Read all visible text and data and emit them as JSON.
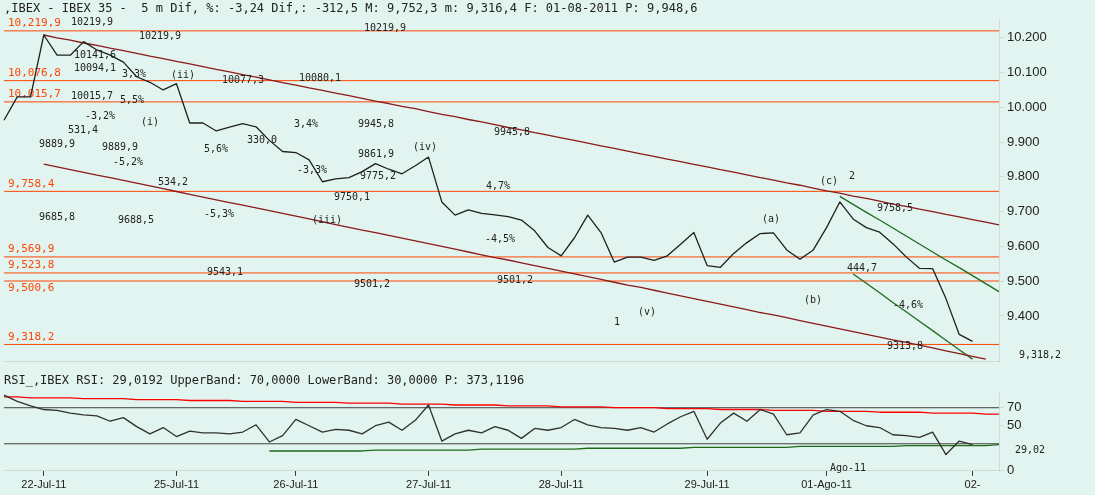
{
  "chart_data": [
    {
      "type": "line",
      "title": ",IBEX - IBEX 35 -  5 m Dif, %: -3,24 Dif,: -312,5 M: 9,752,3 m: 9,316,4 F: 01-08-2011 P: 9,948,6",
      "ylim": [
        9270,
        10250
      ],
      "categories": [
        null,
        null,
        null,
        null,
        null,
        null,
        null,
        null,
        null,
        null,
        null,
        null,
        null,
        null,
        null,
        null,
        null,
        null,
        null,
        null,
        null,
        null,
        null,
        null,
        null,
        null,
        null,
        null,
        null,
        null,
        null,
        null,
        null,
        null,
        null,
        null,
        null,
        null,
        null,
        null,
        null,
        null,
        null,
        null,
        null,
        null,
        null,
        null,
        null,
        null,
        null,
        null,
        null,
        null,
        null,
        null,
        null,
        null,
        null,
        null,
        null,
        null,
        null,
        null,
        null,
        null,
        null,
        null,
        null,
        null,
        null,
        null,
        null,
        null,
        null,
        null
      ],
      "yticks": [
        {
          "value": 9400,
          "label": "9.400"
        },
        {
          "value": 9500,
          "label": "9.500"
        },
        {
          "value": 9600,
          "label": "9.600"
        },
        {
          "value": 9700,
          "label": "9.700"
        },
        {
          "value": 9800,
          "label": "9.800"
        },
        {
          "value": 9900,
          "label": "9.900"
        },
        {
          "value": 10000,
          "label": "10.000"
        },
        {
          "value": 10100,
          "label": "10.100"
        },
        {
          "value": 10200,
          "label": "10.200"
        }
      ],
      "tick_labels": "y",
      "legend": false,
      "marker": "none",
      "series": [
        {
          "color": "#202020",
          "values": [
            9963,
            10030,
            10030,
            10208,
            10150,
            10150,
            10189,
            10165,
            10150,
            10130,
            10088,
            10072,
            10050,
            10068,
            9955,
            9955,
            9932,
            9943,
            9953,
            9944,
            9905,
            9873,
            9870,
            9849,
            9786,
            9794,
            9798,
            9815,
            9838,
            9822,
            9809,
            9832,
            9857,
            9728,
            9690,
            9705,
            9695,
            9691,
            9686,
            9676,
            9645,
            9597,
            9573,
            9625,
            9690,
            9640,
            9555,
            9569,
            9569,
            9560,
            9573,
            9606,
            9640,
            9545,
            9540,
            9580,
            9611,
            9637,
            9639,
            9590,
            9563,
            9590,
            9654,
            9728,
            9679,
            9654,
            9641,
            9608,
            9570,
            9537,
            9536,
            9450,
            9347,
            9327,
            null,
            null
          ]
        },
        {
          "color": "#8b1a1a",
          "values": [
            null,
            null,
            null,
            10208,
            10200,
            10193,
            10185,
            10178,
            10170,
            10163,
            10155,
            10147,
            10140,
            10132,
            10125,
            10117,
            10109,
            10102,
            10094,
            10087,
            10079,
            10071,
            10064,
            10056,
            10049,
            10041,
            10034,
            10026,
            10018,
            10011,
            10003,
            9996,
            9988,
            9980,
            9973,
            9965,
            9958,
            9950,
            9942,
            9935,
            9927,
            9920,
            9912,
            9905,
            9897,
            9889,
            9882,
            9874,
            9866,
            9859,
            9851,
            9844,
            9836,
            9829,
            9821,
            9814,
            9806,
            9798,
            9791,
            9783,
            9776,
            9768,
            9760,
            9753,
            9745,
            9738,
            9730,
            9722,
            9715,
            9707,
            9700,
            9692,
            9685,
            9677,
            9670,
            9662
          ]
        },
        {
          "color": "#8b1a1a",
          "values": [
            null,
            null,
            null,
            9837,
            9829,
            9821,
            9813,
            9805,
            9798,
            9790,
            9782,
            9774,
            9766,
            9758,
            9750,
            9742,
            9734,
            9726,
            9719,
            9711,
            9703,
            9695,
            9687,
            9679,
            9671,
            9663,
            9655,
            9647,
            9640,
            9632,
            9624,
            9616,
            9608,
            9600,
            9592,
            9584,
            9576,
            9568,
            9561,
            9553,
            9545,
            9537,
            9529,
            9521,
            9513,
            9505,
            9497,
            9489,
            9482,
            9474,
            9466,
            9458,
            9450,
            9442,
            9434,
            9426,
            9418,
            9410,
            9403,
            9395,
            9387,
            9379,
            9371,
            9363,
            9355,
            9347,
            9339,
            9331,
            9324,
            9316,
            9308,
            9300,
            9292,
            9284,
            9276,
            null
          ]
        },
        {
          "color": "#1e6b1e",
          "values": [
            null,
            null,
            null,
            null,
            null,
            null,
            null,
            null,
            null,
            null,
            null,
            null,
            null,
            null,
            null,
            null,
            null,
            null,
            null,
            null,
            null,
            null,
            null,
            null,
            null,
            null,
            null,
            null,
            null,
            null,
            null,
            null,
            null,
            null,
            null,
            null,
            null,
            null,
            null,
            null,
            null,
            null,
            null,
            null,
            null,
            null,
            null,
            null,
            null,
            null,
            null,
            null,
            null,
            null,
            null,
            null,
            null,
            null,
            null,
            null,
            null,
            null,
            null,
            9744,
            9721,
            9698,
            9676,
            9653,
            9630,
            9607,
            9584,
            9561,
            9539,
            9516,
            9493,
            9470
          ]
        },
        {
          "color": "#1e6b1e",
          "values": [
            null,
            null,
            null,
            null,
            null,
            null,
            null,
            null,
            null,
            null,
            null,
            null,
            null,
            null,
            null,
            null,
            null,
            null,
            null,
            null,
            null,
            null,
            null,
            null,
            null,
            null,
            null,
            null,
            null,
            null,
            null,
            null,
            null,
            null,
            null,
            null,
            null,
            null,
            null,
            null,
            null,
            null,
            null,
            null,
            null,
            null,
            null,
            null,
            null,
            null,
            null,
            null,
            null,
            null,
            null,
            null,
            null,
            null,
            null,
            null,
            null,
            null,
            null,
            null,
            9521,
            9494,
            9467,
            9439,
            9412,
            9385,
            9358,
            9330,
            9303,
            9276,
            null,
            null
          ]
        }
      ],
      "ref_lines": [
        {
          "axis": "y",
          "value": 10219.9,
          "label": "10,219,9",
          "color": "#ff4500"
        },
        {
          "axis": "y",
          "value": 10076.8,
          "label": "10,076,8",
          "color": "#ff4500"
        },
        {
          "axis": "y",
          "value": 10015.7,
          "label": "10,015,7",
          "color": "#ff4500"
        },
        {
          "axis": "y",
          "value": 9758.4,
          "label": "9,758,4",
          "color": "#ff4500"
        },
        {
          "axis": "y",
          "value": 9569.9,
          "label": "9,569,9",
          "color": "#ff4500"
        },
        {
          "axis": "y",
          "value": 9523.8,
          "label": "9,523,8",
          "color": "#ff4500"
        },
        {
          "axis": "y",
          "value": 9500.6,
          "label": "9,500,6",
          "color": "#ff4500"
        },
        {
          "axis": "y",
          "value": 9318.2,
          "label": "9,318,2",
          "color": "#ff4500"
        }
      ],
      "annotations": [
        "(i)",
        "(ii)",
        "(iii)",
        "(iv)",
        "(v)",
        "(a)",
        "(b)",
        "(c)",
        "1",
        "2",
        "5,5%",
        "-3,2%",
        "-5,2%",
        "5,6%",
        "-5,3%",
        "3,4%",
        "-3,3%",
        "3,3%",
        "531,4",
        "534,2",
        "330,0",
        "4,7%",
        "-4,5%",
        "-4,6%",
        "444,7",
        "10077,3",
        "10080,1",
        "9750,1",
        "9543,1",
        "9688,5",
        "9889,9",
        "9889,9",
        "9685,8",
        "9945,8",
        "9861,9",
        "9775,2",
        "9758,5",
        "9313,8",
        "9501,2",
        "9501,2",
        "9945,8",
        "10219,9",
        "10219,9",
        "10219,9",
        "10015,7",
        "10094,1",
        "10141,6",
        "9,318,2"
      ]
    },
    {
      "type": "line",
      "title": "RSI_,IBEX RSI: 29,0192 UpperBand: 70,0000 LowerBand: 30,0000 P: 373,1196",
      "ylim": [
        0,
        87
      ],
      "categories": [
        null,
        null,
        null,
        "22-Jul-11",
        null,
        null,
        null,
        null,
        null,
        null,
        null,
        null,
        null,
        "25-Jul-11",
        null,
        null,
        null,
        null,
        null,
        null,
        null,
        null,
        "26-Jul-11",
        null,
        null,
        null,
        null,
        null,
        null,
        null,
        null,
        null,
        "27-Jul-11",
        null,
        null,
        null,
        null,
        null,
        null,
        null,
        null,
        null,
        "28-Jul-11",
        null,
        null,
        null,
        null,
        null,
        null,
        null,
        null,
        null,
        null,
        "29-Jul-11",
        null,
        null,
        null,
        null,
        null,
        null,
        null,
        null,
        "01-Ago-11",
        null,
        null,
        null,
        null,
        null,
        null,
        null,
        null,
        null,
        null,
        "02-",
        null,
        null
      ],
      "yticks": [
        0,
        50,
        70
      ],
      "legend": false,
      "marker": "none",
      "series": [
        {
          "color": "#303030",
          "values": [
            84,
            77,
            72,
            68,
            67,
            64,
            62,
            61,
            55,
            59,
            49,
            41,
            48,
            38,
            44,
            42,
            42,
            41,
            43,
            51,
            32,
            39,
            57,
            50,
            43,
            46,
            45,
            41,
            50,
            54,
            45,
            56,
            73,
            33,
            41,
            45,
            42,
            49,
            45,
            36,
            47,
            45,
            48,
            57,
            51,
            48,
            47,
            45,
            48,
            43,
            52,
            60,
            66,
            35,
            53,
            64,
            55,
            68,
            63,
            40,
            42,
            62,
            68,
            66,
            56,
            50,
            48,
            40,
            39,
            37,
            43,
            18,
            33,
            29,
            null,
            null
          ]
        },
        {
          "color": "#ff0000",
          "values": [
            82,
            82,
            81,
            81,
            81,
            81,
            80,
            80,
            80,
            80,
            79,
            79,
            79,
            79,
            78,
            78,
            78,
            78,
            77,
            77,
            77,
            77,
            76,
            76,
            76,
            76,
            75,
            75,
            75,
            75,
            74,
            74,
            74,
            74,
            73,
            73,
            73,
            73,
            72,
            72,
            72,
            72,
            71,
            71,
            71,
            71,
            70,
            70,
            70,
            70,
            69,
            69,
            69,
            69,
            68,
            68,
            68,
            68,
            67,
            67,
            67,
            67,
            66,
            66,
            66,
            66,
            65,
            65,
            65,
            65,
            64,
            64,
            64,
            64,
            63,
            63
          ]
        },
        {
          "color": "#1e6b1e",
          "values": [
            null,
            null,
            null,
            null,
            null,
            null,
            null,
            null,
            null,
            null,
            null,
            null,
            null,
            null,
            null,
            null,
            null,
            null,
            null,
            null,
            22,
            22,
            22,
            22,
            22,
            22,
            22,
            22,
            23,
            23,
            23,
            23,
            23,
            23,
            23,
            23,
            24,
            24,
            24,
            24,
            24,
            24,
            24,
            24,
            25,
            25,
            25,
            25,
            25,
            25,
            25,
            25,
            26,
            26,
            26,
            26,
            26,
            26,
            26,
            26,
            27,
            27,
            27,
            27,
            27,
            27,
            27,
            27,
            28,
            28,
            28,
            28,
            28,
            28,
            28,
            29
          ]
        }
      ],
      "ref_lines": [
        {
          "axis": "y",
          "value": 70,
          "color": "#404040"
        },
        {
          "axis": "y",
          "value": 30,
          "color": "#404040"
        }
      ],
      "annotations": [
        "Ago-11",
        "29,02"
      ]
    }
  ]
}
